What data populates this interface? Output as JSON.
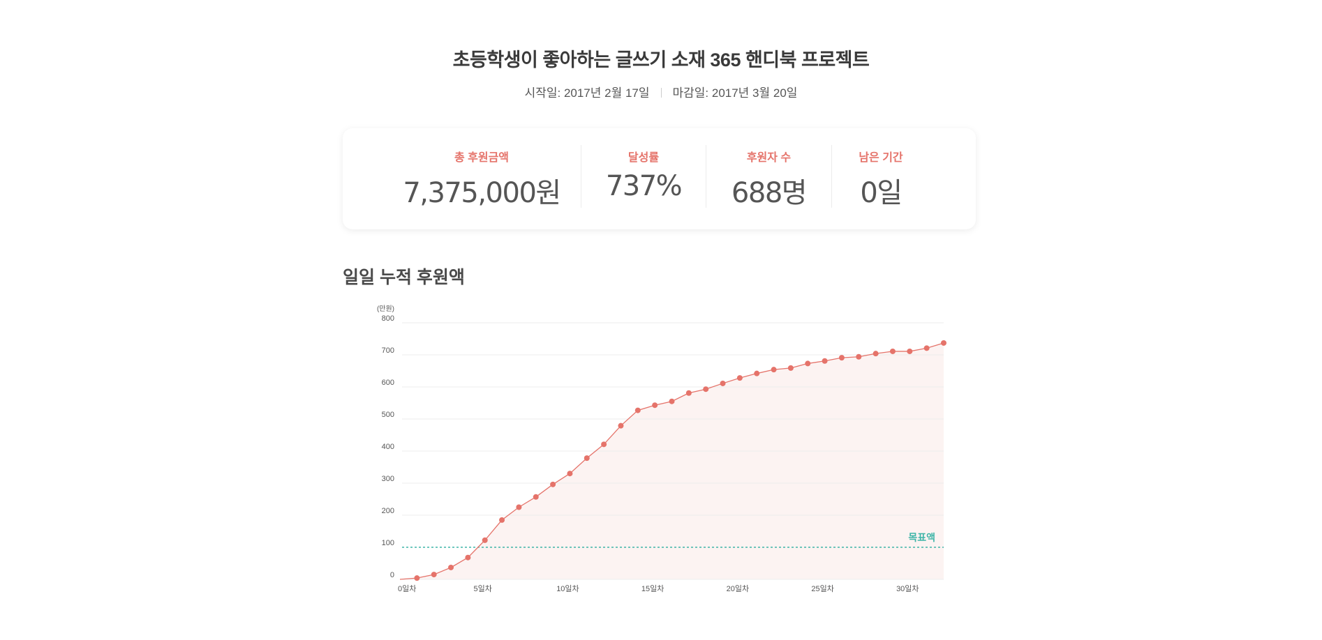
{
  "header": {
    "title": "초등학생이 좋아하는 글쓰기 소재 365 핸디북 프로젝트",
    "start_date": "시작일: 2017년 2월 17일",
    "end_date": "마감일: 2017년 3월 20일"
  },
  "stats": [
    {
      "label": "총 후원금액",
      "value": "7,375,000원"
    },
    {
      "label": "달성률",
      "value": "737%"
    },
    {
      "label": "후원자 수",
      "value": "688명"
    },
    {
      "label": "남은 기간",
      "value": "0일"
    }
  ],
  "colors": {
    "accent": "#e5736a",
    "line": "#e5736a",
    "area": "#fcf3f2",
    "target": "#3fb5a8",
    "grid": "#ececec"
  },
  "section": {
    "title": "일일 누적 후원액"
  },
  "chart_data": {
    "type": "line",
    "title": "일일 누적 후원액",
    "ylabel": "(만원)",
    "xlabel": "",
    "ylim": [
      0,
      800
    ],
    "xlim": [
      0,
      32
    ],
    "grid": true,
    "yticks": [
      0,
      100,
      200,
      300,
      400,
      500,
      600,
      700,
      800
    ],
    "xticks": [
      0,
      5,
      10,
      15,
      20,
      25,
      30
    ],
    "xtick_labels": [
      "0일차",
      "5일차",
      "10일차",
      "15일차",
      "20일차",
      "25일차",
      "30일차"
    ],
    "x": [
      1,
      2,
      3,
      4,
      5,
      6,
      7,
      8,
      9,
      10,
      11,
      12,
      13,
      14,
      15,
      16,
      17,
      18,
      19,
      20,
      21,
      22,
      23,
      24,
      25,
      26,
      27,
      28,
      29,
      30,
      31,
      32
    ],
    "series": [
      {
        "name": "누적 후원액",
        "values": [
          4,
          15,
          37,
          68,
          122,
          185,
          225,
          257,
          296,
          330,
          378,
          421,
          479,
          527,
          543,
          555,
          581,
          593,
          611,
          628,
          642,
          654,
          659,
          673,
          681,
          691,
          694,
          704,
          711,
          711,
          721,
          737
        ]
      }
    ],
    "annotations": [
      {
        "type": "hline",
        "y": 100,
        "label": "목표액",
        "style": "dotted"
      }
    ]
  }
}
